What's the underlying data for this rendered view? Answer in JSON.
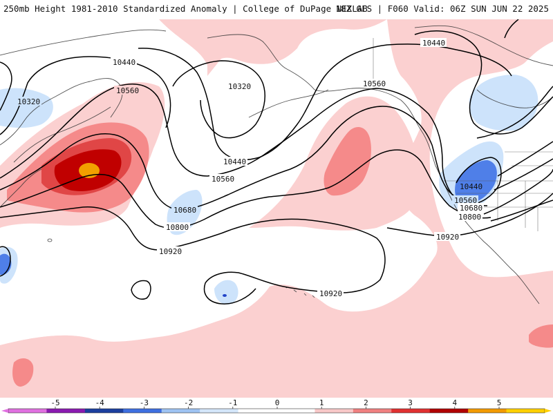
{
  "header": {
    "title_left": "250mb Height 1981-2010 Standardized Anomaly | College of DuPage NEXLAB",
    "title_right": "18Z GFS | F060 Valid: 06Z SUN JUN 22 2025"
  },
  "contours": {
    "labels": [
      "10440",
      "10320",
      "10560",
      "10320",
      "10440",
      "10560",
      "10680",
      "10800",
      "10920",
      "10560",
      "10440",
      "10440",
      "10560",
      "10680",
      "10800",
      "10920",
      "10920"
    ]
  },
  "colorbar": {
    "ticks": [
      "-5",
      "-4",
      "-3",
      "-2",
      "-1",
      "0",
      "1",
      "2",
      "3",
      "4",
      "5"
    ],
    "colors": [
      "#e070e0",
      "#8a1ab0",
      "#1b3f9e",
      "#3e6fe0",
      "#9ec3f2",
      "#d4e6fa",
      "#ffffff",
      "#ffffff",
      "#f8c8c8",
      "#f08080",
      "#e03030",
      "#b00000",
      "#f29a00",
      "#ffd000"
    ]
  },
  "colors": {
    "pos_light": "#fbd0d0",
    "pos_mid": "#f58a8a",
    "pos_strong": "#e04646",
    "pos_dark": "#c00000",
    "pos_orange": "#f2a000",
    "neg_light": "#cde3fb",
    "neg_mid": "#4f7fe8",
    "neg_dark": "#2244c8"
  }
}
